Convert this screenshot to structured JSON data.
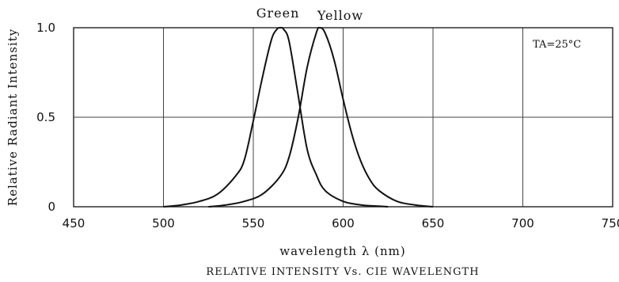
{
  "chart_data": {
    "type": "line",
    "xlabel": "wavelength λ (nm)",
    "ylabel": "Relative Radiant Intensity",
    "caption": "RELATIVE INTENSITY Vs. CIE WAVELENGTH",
    "annotation": "TA=25°C",
    "xlim": [
      450,
      650
    ],
    "ylim": [
      0,
      1.0
    ],
    "x_ticks": [
      "450",
      "500",
      "550",
      "600",
      "650",
      "700",
      "750"
    ],
    "y_ticks": [
      "0",
      "0.5",
      "1.0"
    ],
    "grid": true,
    "series": [
      {
        "name": "Green",
        "x": [
          500,
          510,
          520,
          530,
          540,
          545,
          550,
          555,
          560,
          563,
          565,
          567,
          570,
          575,
          580,
          585,
          590,
          600,
          610,
          620,
          625
        ],
        "y": [
          0.0,
          0.01,
          0.03,
          0.07,
          0.17,
          0.26,
          0.48,
          0.72,
          0.93,
          0.99,
          1.0,
          0.99,
          0.92,
          0.62,
          0.32,
          0.18,
          0.09,
          0.03,
          0.01,
          0.003,
          0.0
        ]
      },
      {
        "name": "Yellow",
        "x": [
          525,
          535,
          545,
          555,
          565,
          570,
          575,
          580,
          585,
          587,
          590,
          595,
          600,
          605,
          610,
          615,
          620,
          630,
          640,
          650
        ],
        "y": [
          0.0,
          0.01,
          0.03,
          0.07,
          0.17,
          0.28,
          0.5,
          0.78,
          0.97,
          1.0,
          0.97,
          0.82,
          0.6,
          0.4,
          0.25,
          0.15,
          0.09,
          0.03,
          0.01,
          0.0
        ]
      }
    ]
  }
}
